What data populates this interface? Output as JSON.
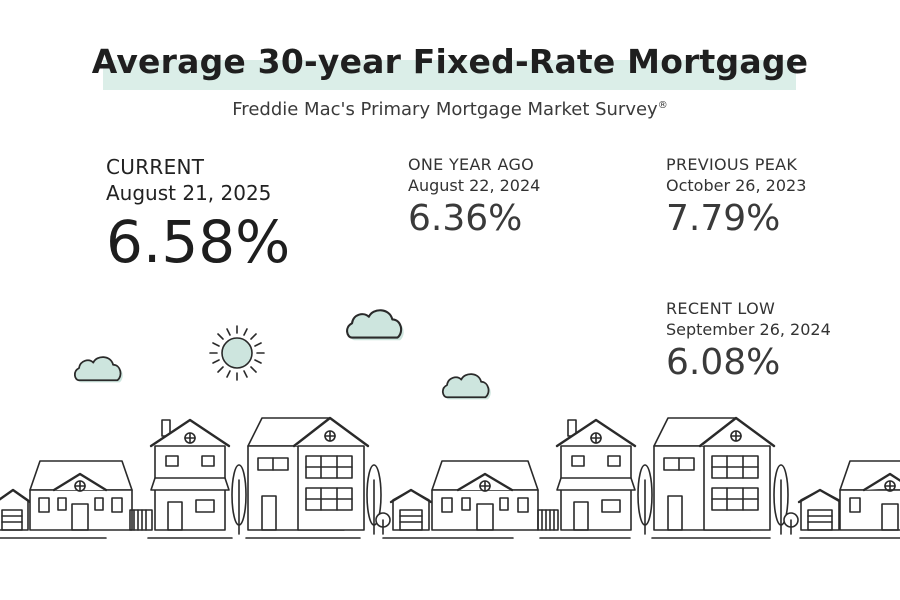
{
  "header": {
    "title": "Average 30-year Fixed-Rate Mortgage",
    "subtitle": "Freddie Mac's Primary Mortgage Market Survey",
    "subtitle_mark": "®"
  },
  "stats": {
    "current": {
      "label": "CURRENT",
      "date": "August 21, 2025",
      "value": "6.58%"
    },
    "one_year_ago": {
      "label": "ONE YEAR AGO",
      "date": "August 22, 2024",
      "value": "6.36%"
    },
    "previous_peak": {
      "label": "PREVIOUS PEAK",
      "date": "October 26, 2023",
      "value": "7.79%"
    },
    "recent_low": {
      "label": "RECENT LOW",
      "date": "September 26, 2024",
      "value": "6.08%"
    }
  },
  "colors": {
    "accent": "#cde5de",
    "highlight": "#dbeee8",
    "line": "#2a2a2a"
  },
  "icons": [
    "sun-icon",
    "cloud-icon",
    "house-icon",
    "tree-icon"
  ]
}
